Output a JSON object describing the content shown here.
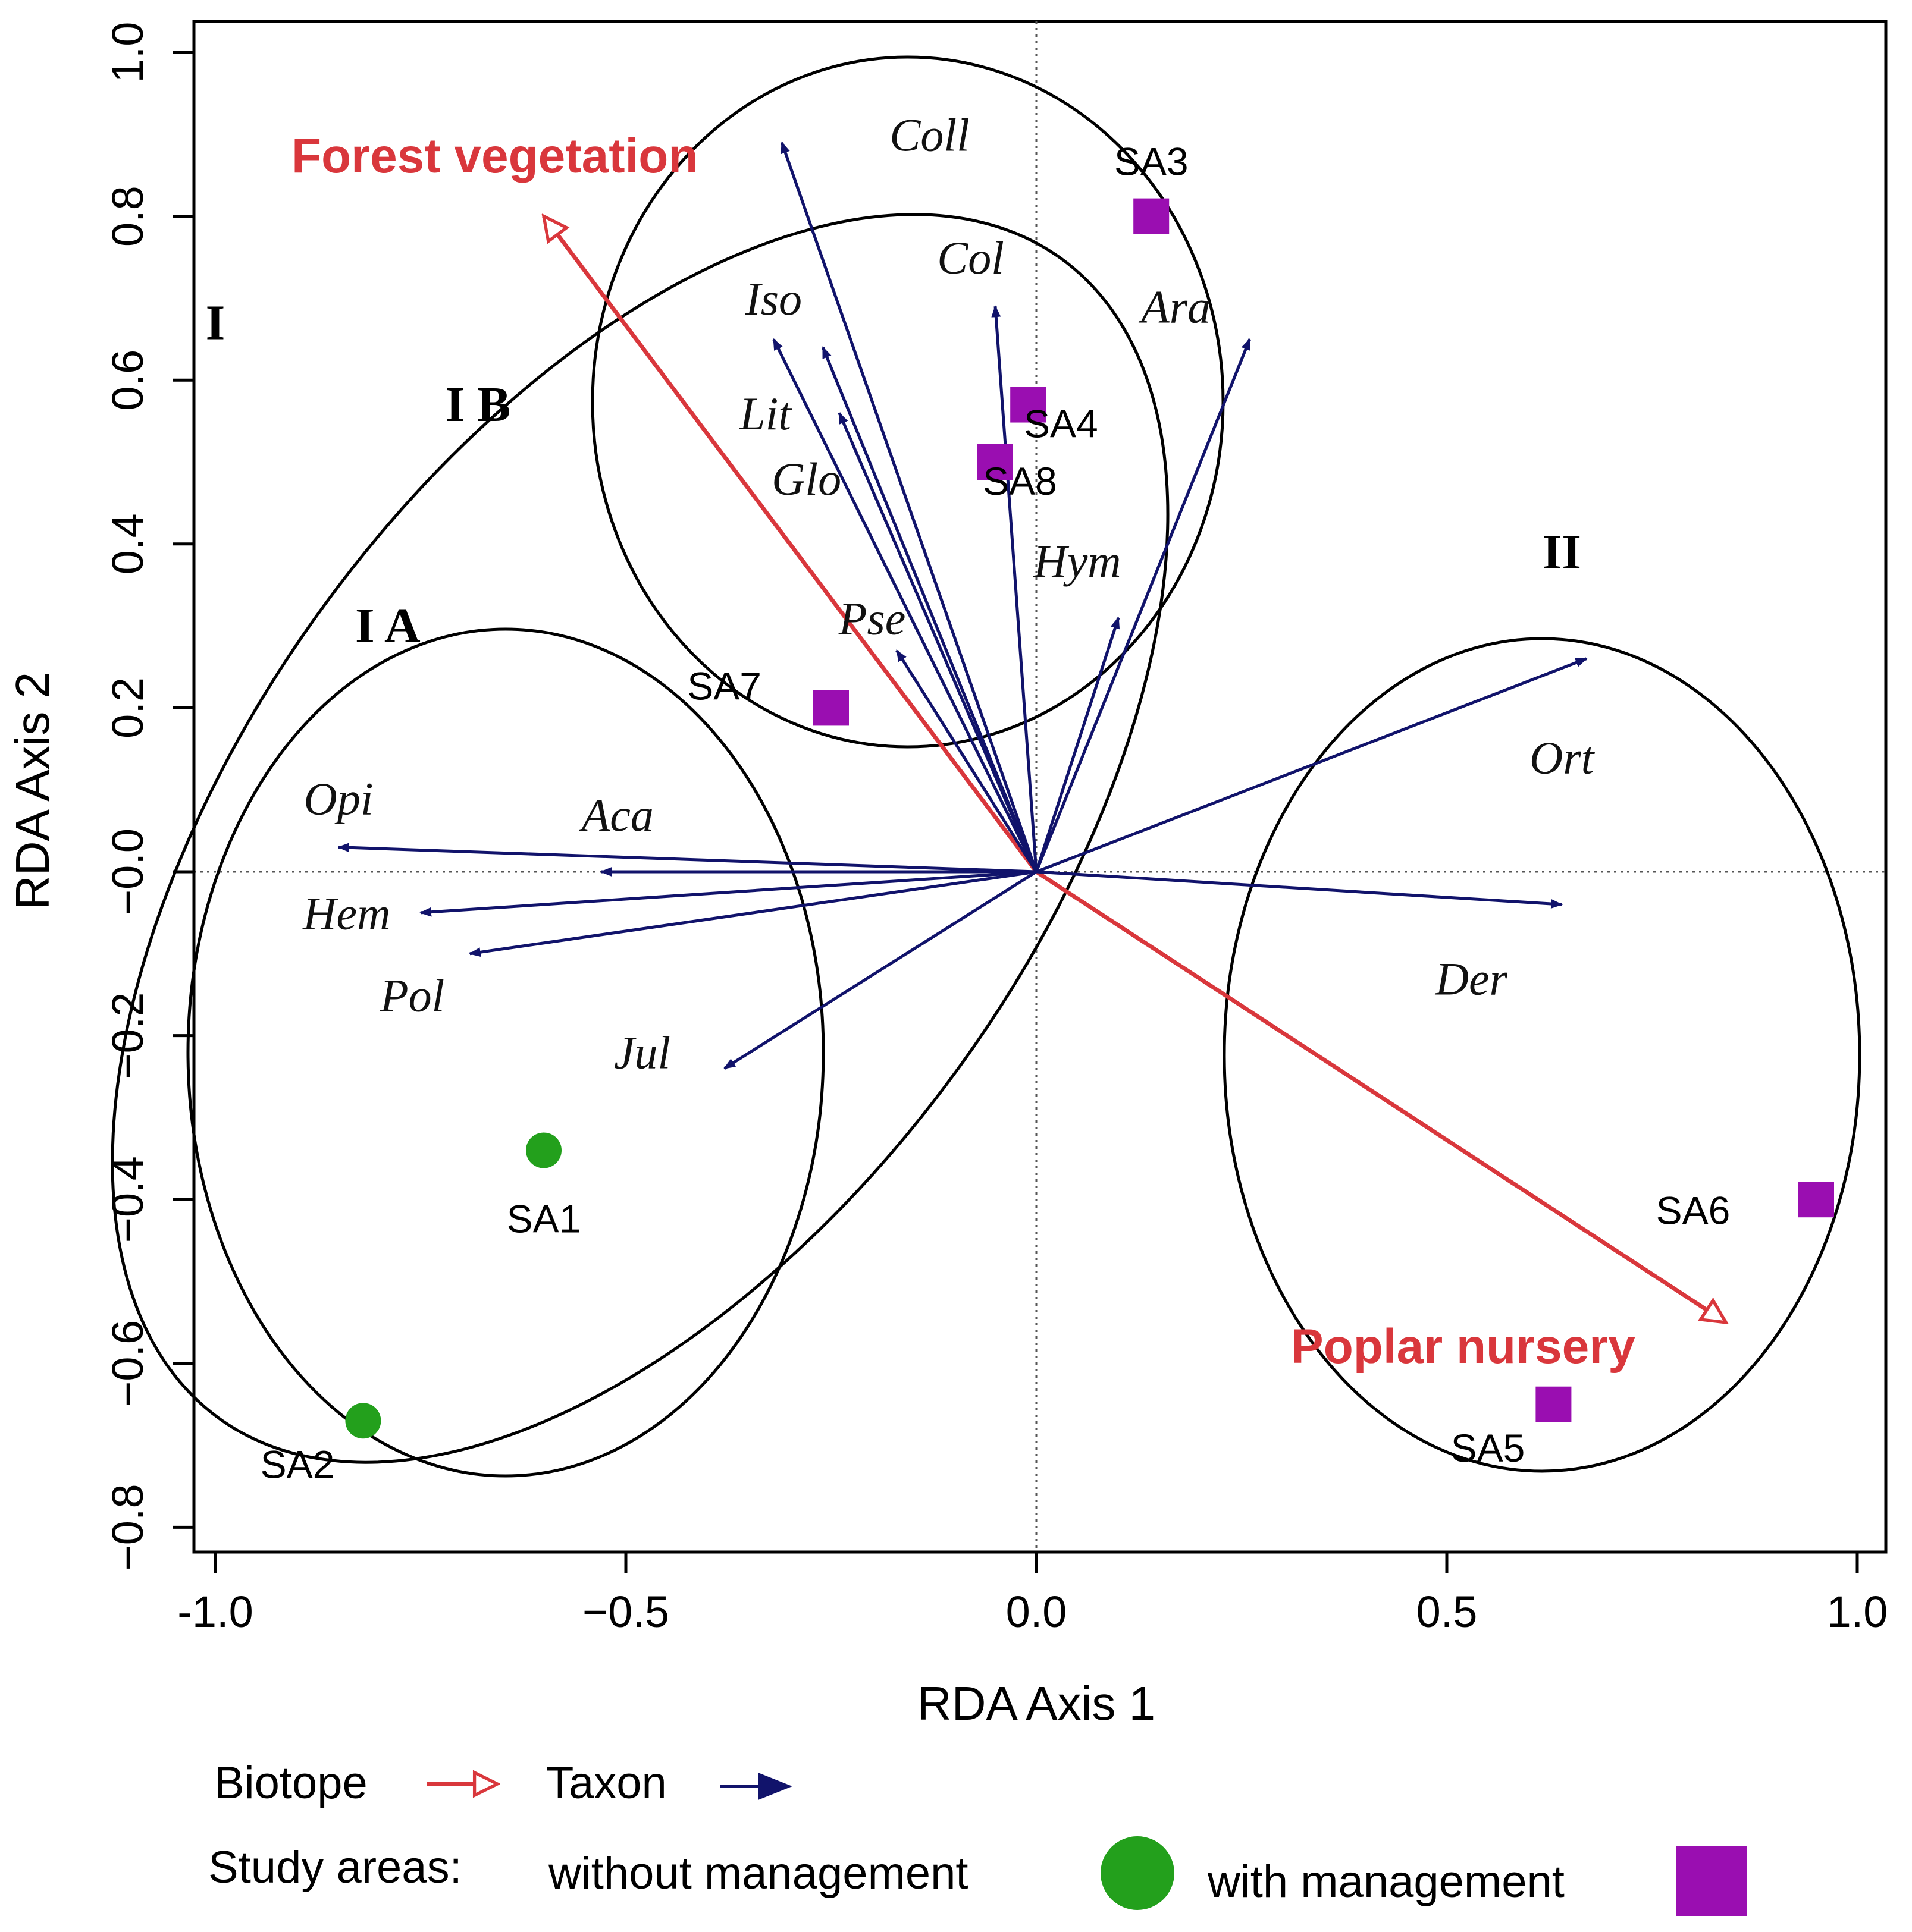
{
  "chart_data": {
    "type": "scatter",
    "subtype": "RDA triplot (ordination biplot)",
    "xlabel": "RDA Axis 1",
    "ylabel": "RDA Axis 2",
    "xlim": [
      -1.03,
      1.03
    ],
    "ylim": [
      -0.84,
      1.04
    ],
    "x_ticks": [
      -1.0,
      -0.5,
      0.0,
      0.5,
      1.0
    ],
    "x_tick_labels": [
      "-1.0",
      "−0.5",
      "0.0",
      "0.5",
      "1.0"
    ],
    "y_ticks": [
      -0.8,
      -0.6,
      -0.4,
      -0.2,
      0.0,
      0.2,
      0.4,
      0.6,
      0.8,
      1.0
    ],
    "y_tick_labels": [
      "−0.8",
      "−0.6",
      "−0.4",
      "−0.2",
      "−0.0",
      "0.2",
      "0.4",
      "0.6",
      "0.8",
      "1.0"
    ],
    "reference_lines": [
      "x = 0",
      "y = 0"
    ],
    "biotopes": [
      {
        "name": "Forest vegetation",
        "x": -0.6,
        "y": 0.8
      },
      {
        "name": "Poplar nursery",
        "x": 0.84,
        "y": -0.55
      }
    ],
    "taxa": [
      {
        "name": "Coll",
        "x": -0.31,
        "y": 0.89,
        "label_x": -0.13,
        "label_y": 0.88
      },
      {
        "name": "Col",
        "x": -0.05,
        "y": 0.69,
        "label_x": -0.08,
        "label_y": 0.73
      },
      {
        "name": "Ara",
        "x": 0.26,
        "y": 0.65,
        "label_x": 0.17,
        "label_y": 0.67
      },
      {
        "name": "Iso",
        "x": -0.32,
        "y": 0.65,
        "label_x": -0.32,
        "label_y": 0.68
      },
      {
        "name": "Lit",
        "x": -0.26,
        "y": 0.64,
        "label_x": -0.33,
        "label_y": 0.54
      },
      {
        "name": "Glo",
        "x": -0.24,
        "y": 0.56,
        "label_x": -0.28,
        "label_y": 0.46
      },
      {
        "name": "Hym",
        "x": 0.1,
        "y": 0.31,
        "label_x": 0.05,
        "label_y": 0.36
      },
      {
        "name": "Pse",
        "x": -0.17,
        "y": 0.27,
        "label_x": -0.2,
        "label_y": 0.29
      },
      {
        "name": "Ort",
        "x": 0.67,
        "y": 0.26,
        "label_x": 0.64,
        "label_y": 0.12
      },
      {
        "name": "Opi",
        "x": -0.85,
        "y": 0.03,
        "label_x": -0.85,
        "label_y": 0.07
      },
      {
        "name": "Aca",
        "x": -0.53,
        "y": 0.0,
        "label_x": -0.51,
        "label_y": 0.05
      },
      {
        "name": "Hem",
        "x": -0.75,
        "y": -0.05,
        "label_x": -0.84,
        "label_y": -0.07
      },
      {
        "name": "Pol",
        "x": -0.69,
        "y": -0.1,
        "label_x": -0.76,
        "label_y": -0.17
      },
      {
        "name": "Jul",
        "x": -0.38,
        "y": -0.24,
        "label_x": -0.48,
        "label_y": -0.24
      },
      {
        "name": "Der",
        "x": 0.64,
        "y": -0.04,
        "label_x": 0.53,
        "label_y": -0.15
      }
    ],
    "study_areas": [
      {
        "name": "SA1",
        "x": -0.6,
        "y": -0.34,
        "managed": false,
        "label_x": -0.6,
        "label_y": -0.44
      },
      {
        "name": "SA2",
        "x": -0.82,
        "y": -0.67,
        "managed": false,
        "label_x": -0.9,
        "label_y": -0.74
      },
      {
        "name": "SA3",
        "x": 0.14,
        "y": 0.8,
        "managed": true,
        "label_x": 0.14,
        "label_y": 0.85
      },
      {
        "name": "SA4",
        "x": -0.01,
        "y": 0.57,
        "managed": true,
        "label_x": 0.03,
        "label_y": 0.53
      },
      {
        "name": "SA5",
        "x": 0.63,
        "y": -0.65,
        "managed": true,
        "label_x": 0.55,
        "label_y": -0.72
      },
      {
        "name": "SA6",
        "x": 0.95,
        "y": -0.4,
        "managed": true,
        "label_x": 0.8,
        "label_y": -0.43
      },
      {
        "name": "SA7",
        "x": -0.25,
        "y": 0.2,
        "managed": true,
        "label_x": -0.38,
        "label_y": 0.21
      },
      {
        "name": "SA8",
        "x": -0.05,
        "y": 0.5,
        "managed": true,
        "label_x": -0.02,
        "label_y": 0.46
      }
    ],
    "groups": [
      {
        "name": "I",
        "label_x": -1.0,
        "label_y": 0.65
      },
      {
        "name": "I B",
        "label_x": -0.68,
        "label_y": 0.55
      },
      {
        "name": "I A",
        "label_x": -0.79,
        "label_y": 0.28
      },
      {
        "name": "II",
        "label_x": 0.64,
        "label_y": 0.37
      }
    ],
    "colors": {
      "biotope": "#d9373c",
      "taxon": "#11136b",
      "without_management": "#23a01c",
      "with_management": "#9a0eb1",
      "axis": "#000000"
    },
    "legend": {
      "position": "bottom",
      "biotope": "Biotope",
      "taxon": "Taxon",
      "study_areas": "Study areas:",
      "without_management": "without management",
      "with_management": "with management"
    }
  }
}
